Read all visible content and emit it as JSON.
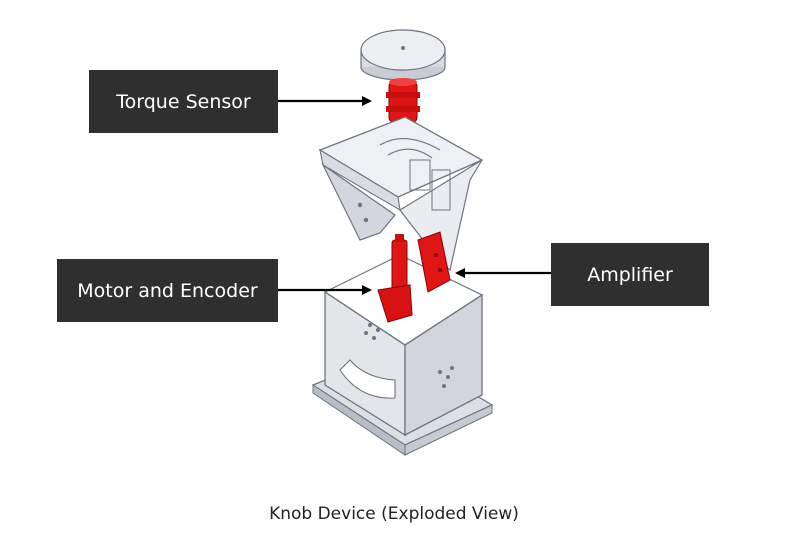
{
  "callouts": {
    "torque_sensor": "Torque Sensor",
    "motor_encoder": "Motor and Encoder",
    "amplifier": "Amplifier"
  },
  "caption": "Knob Device (Exploded View)",
  "colors": {
    "callout_bg": "#2f2f2f",
    "callout_text": "#ffffff",
    "highlight_red": "#e01616",
    "frame_fill": "#e6e8ec",
    "frame_edge": "#6e7480"
  }
}
